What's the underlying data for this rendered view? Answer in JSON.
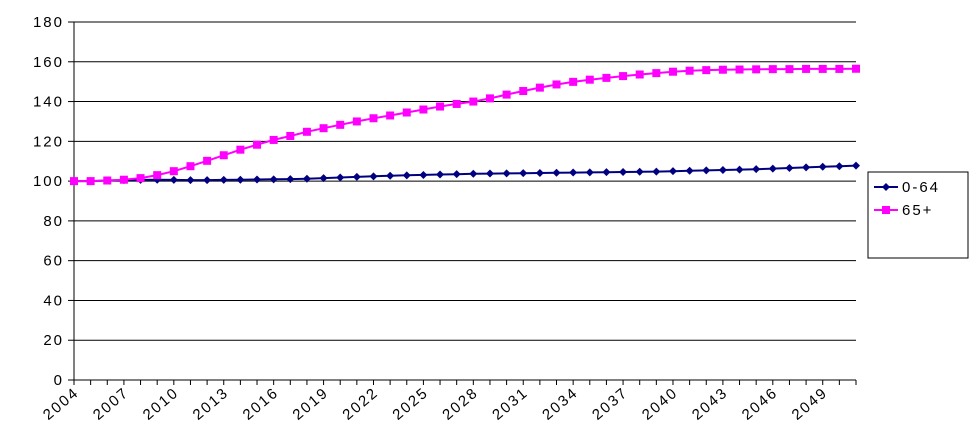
{
  "chart_data": {
    "type": "line",
    "title": "",
    "xlabel": "",
    "ylabel": "",
    "x": [
      2004,
      2005,
      2006,
      2007,
      2008,
      2009,
      2010,
      2011,
      2012,
      2013,
      2014,
      2015,
      2016,
      2017,
      2018,
      2019,
      2020,
      2021,
      2022,
      2023,
      2024,
      2025,
      2026,
      2027,
      2028,
      2029,
      2030,
      2031,
      2032,
      2033,
      2034,
      2035,
      2036,
      2037,
      2038,
      2039,
      2040,
      2041,
      2042,
      2043,
      2044,
      2045,
      2046,
      2047,
      2048,
      2049,
      2050,
      2051
    ],
    "x_tick_labels": [
      "2004",
      "2007",
      "2010",
      "2013",
      "2016",
      "2019",
      "2022",
      "2025",
      "2028",
      "2031",
      "2034",
      "2037",
      "2040",
      "2043",
      "2046",
      "2049"
    ],
    "ylim": [
      0,
      180
    ],
    "y_ticks": [
      0,
      20,
      40,
      60,
      80,
      100,
      120,
      140,
      160,
      180
    ],
    "y_tick_labels": [
      "0",
      "20",
      "40",
      "60",
      "80",
      "100",
      "120",
      "140",
      "160",
      "180"
    ],
    "grid": true,
    "legend_position": "right",
    "series": [
      {
        "name": "0-64",
        "color": "#000080",
        "marker": "diamond",
        "values": [
          100,
          100,
          100.3,
          100.5,
          100.6,
          100.7,
          100.6,
          100.5,
          100.5,
          100.6,
          100.7,
          100.8,
          100.9,
          101,
          101.2,
          101.5,
          101.8,
          102.1,
          102.4,
          102.7,
          102.9,
          103.1,
          103.3,
          103.5,
          103.7,
          103.8,
          103.9,
          104,
          104.1,
          104.2,
          104.3,
          104.4,
          104.5,
          104.6,
          104.7,
          104.8,
          105,
          105.2,
          105.4,
          105.6,
          105.8,
          106,
          106.3,
          106.6,
          106.9,
          107.2,
          107.5,
          107.8
        ]
      },
      {
        "name": "65+",
        "color": "#FF00FF",
        "marker": "square",
        "values": [
          100,
          100,
          100.3,
          100.7,
          101.5,
          103,
          105,
          107.5,
          110.2,
          113,
          115.8,
          118.3,
          120.7,
          122.7,
          124.8,
          126.6,
          128.3,
          130,
          131.6,
          133,
          134.5,
          136,
          137.5,
          138.8,
          140,
          141.6,
          143.5,
          145.3,
          147,
          148.6,
          149.9,
          151,
          151.9,
          152.8,
          153.6,
          154.3,
          155,
          155.5,
          155.8,
          156,
          156.1,
          156.2,
          156.3,
          156.3,
          156.4,
          156.4,
          156.4,
          156.5
        ]
      }
    ]
  }
}
